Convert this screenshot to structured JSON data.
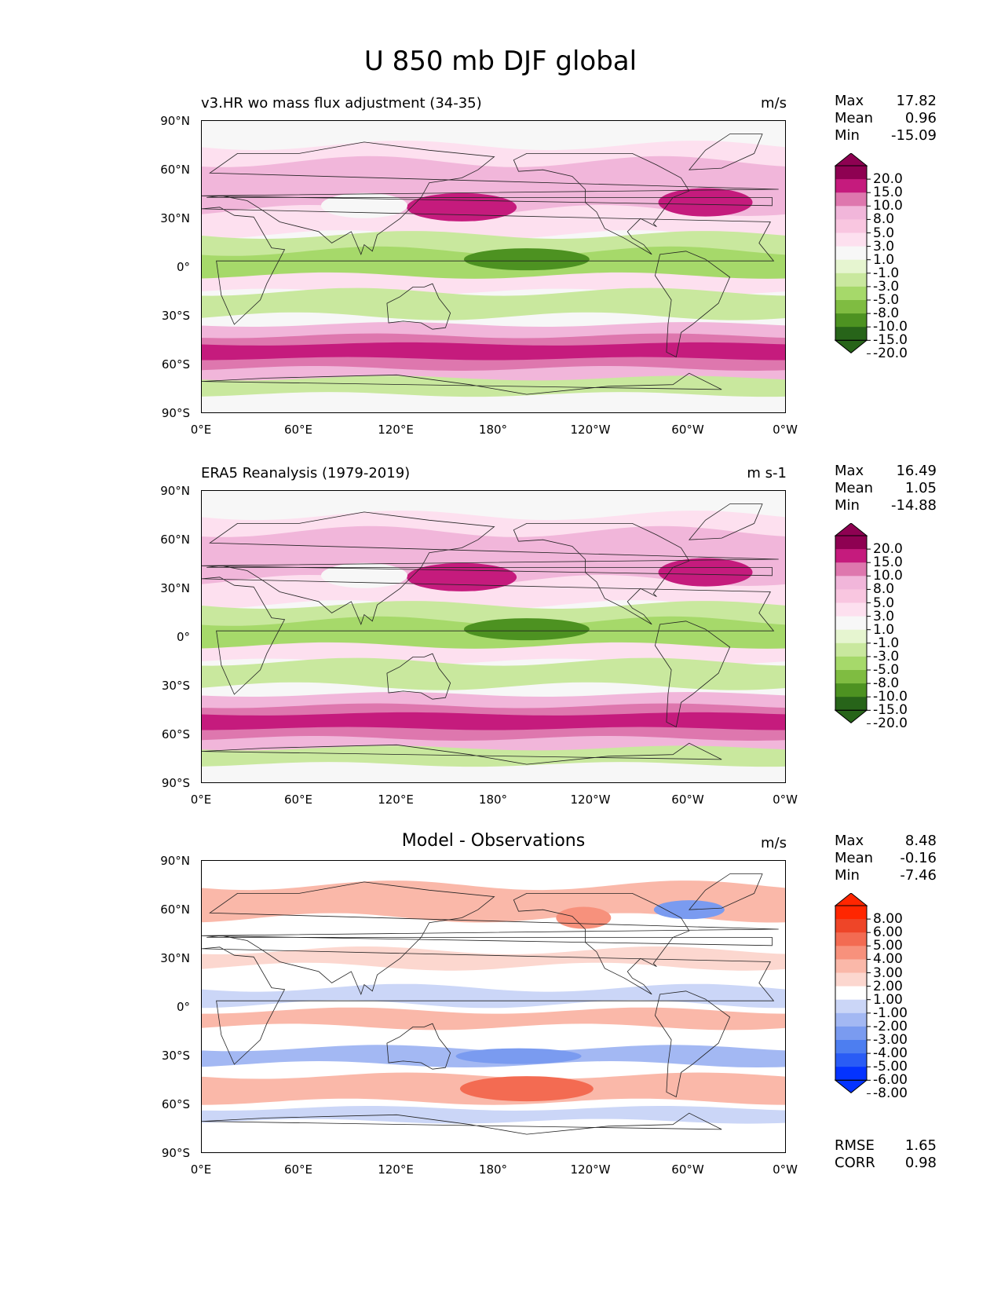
{
  "figure_title": "U 850 mb DJF global",
  "panels": [
    {
      "title": "v3.HR wo mass flux adjustment (34-35)",
      "title_align": "left",
      "units": "m/s",
      "stats": [
        {
          "key": "Max",
          "value": "17.82"
        },
        {
          "key": "Mean",
          "value": "0.96"
        },
        {
          "key": "Min",
          "value": "-15.09"
        }
      ],
      "palette": "piyg",
      "colorbar_labels": [
        "20.0",
        "15.0",
        "10.0",
        "8.0",
        "5.0",
        "3.0",
        "1.0",
        "-1.0",
        "-3.0",
        "-5.0",
        "-8.0",
        "-10.0",
        "-15.0",
        "-20.0"
      ]
    },
    {
      "title": "ERA5 Reanalysis (1979-2019)",
      "title_align": "left",
      "units": "m s-1",
      "stats": [
        {
          "key": "Max",
          "value": "16.49"
        },
        {
          "key": "Mean",
          "value": "1.05"
        },
        {
          "key": "Min",
          "value": "-14.88"
        }
      ],
      "palette": "piyg",
      "colorbar_labels": [
        "20.0",
        "15.0",
        "10.0",
        "8.0",
        "5.0",
        "3.0",
        "1.0",
        "-1.0",
        "-3.0",
        "-5.0",
        "-8.0",
        "-10.0",
        "-15.0",
        "-20.0"
      ]
    },
    {
      "title": "Model - Observations",
      "title_align": "center",
      "units": "m/s",
      "stats": [
        {
          "key": "Max",
          "value": "8.48"
        },
        {
          "key": "Mean",
          "value": "-0.16"
        },
        {
          "key": "Min",
          "value": "-7.46"
        }
      ],
      "extra_stats": [
        {
          "key": "RMSE",
          "value": "1.65"
        },
        {
          "key": "CORR",
          "value": "0.98"
        }
      ],
      "palette": "rdbu",
      "colorbar_labels": [
        "8.00",
        "6.00",
        "5.00",
        "4.00",
        "3.00",
        "2.00",
        "1.00",
        "-1.00",
        "-2.00",
        "-3.00",
        "-4.00",
        "-5.00",
        "-6.00",
        "-8.00"
      ]
    }
  ],
  "axes": {
    "y_ticks": [
      "90°N",
      "60°N",
      "30°N",
      "0°",
      "30°S",
      "60°S",
      "90°S"
    ],
    "x_ticks": [
      "0°E",
      "60°E",
      "120°E",
      "180°",
      "120°W",
      "60°W",
      "0°W"
    ]
  },
  "palettes": {
    "piyg": [
      "#276419",
      "#4d9221",
      "#7fbc41",
      "#a6d96a",
      "#c9e89e",
      "#e6f5d0",
      "#f7f7f7",
      "#fde0ef",
      "#f9c6e0",
      "#f1b6da",
      "#de77ae",
      "#c51b7d",
      "#8e0152"
    ],
    "rdbu": [
      "#0433ff",
      "#2a5cf5",
      "#4d7ef0",
      "#7a9bf0",
      "#a3b8f3",
      "#cbd6f7",
      "#ffffff",
      "#fcd7cf",
      "#fab8a9",
      "#f7917c",
      "#f36b52",
      "#ee4528",
      "#ff2600"
    ]
  }
}
